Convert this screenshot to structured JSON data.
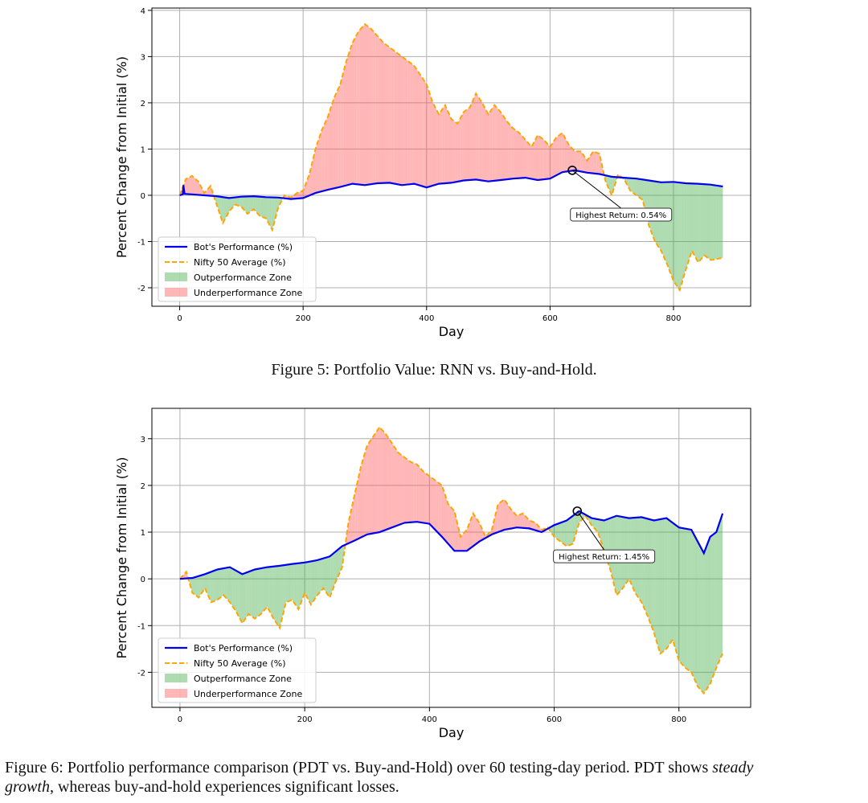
{
  "figures": [
    {
      "id": "fig5",
      "caption": "Figure 5: Portfolio Value: RNN vs. Buy-and-Hold.",
      "chart_data": {
        "type": "line",
        "title": "",
        "xlabel": "Day",
        "ylabel": "Percent Change from Initial (%)",
        "xlim": [
          -45,
          925
        ],
        "ylim": [
          -2.4,
          4.05
        ],
        "x_ticks": [
          0,
          200,
          400,
          600,
          800
        ],
        "y_ticks": [
          -2,
          -1,
          0,
          1,
          2,
          3,
          4
        ],
        "grid": true,
        "legend_position": "lower-left",
        "legend": [
          "Bot's Performance (%)",
          "Nifty 50 Average (%)",
          "Outperformance Zone",
          "Underperformance Zone"
        ],
        "series": [
          {
            "name": "Bot's Performance (%)",
            "style": "solid",
            "color": "#0000ee",
            "x": [
              0,
              5,
              6,
              8,
              20,
              40,
              60,
              80,
              100,
              120,
              140,
              160,
              180,
              200,
              220,
              240,
              260,
              280,
              300,
              320,
              340,
              360,
              380,
              400,
              420,
              440,
              460,
              480,
              500,
              520,
              540,
              560,
              580,
              600,
              620,
              640,
              660,
              680,
              700,
              720,
              740,
              760,
              780,
              800,
              820,
              840,
              860,
              880
            ],
            "y": [
              0.0,
              0.02,
              0.22,
              0.03,
              0.02,
              0.0,
              -0.02,
              -0.06,
              -0.03,
              -0.02,
              -0.04,
              -0.05,
              -0.08,
              -0.06,
              0.05,
              0.12,
              0.18,
              0.25,
              0.22,
              0.26,
              0.27,
              0.22,
              0.25,
              0.17,
              0.25,
              0.27,
              0.32,
              0.34,
              0.3,
              0.33,
              0.36,
              0.38,
              0.33,
              0.36,
              0.5,
              0.54,
              0.49,
              0.46,
              0.4,
              0.38,
              0.36,
              0.32,
              0.28,
              0.29,
              0.26,
              0.25,
              0.23,
              0.19
            ]
          },
          {
            "name": "Nifty 50 Average (%)",
            "style": "dashed",
            "color": "#ffa500",
            "x": [
              0,
              10,
              20,
              30,
              40,
              50,
              60,
              70,
              80,
              90,
              100,
              110,
              120,
              130,
              140,
              150,
              160,
              170,
              180,
              190,
              200,
              210,
              220,
              230,
              240,
              250,
              260,
              270,
              280,
              290,
              300,
              310,
              320,
              330,
              340,
              350,
              360,
              370,
              380,
              390,
              400,
              410,
              420,
              430,
              440,
              450,
              460,
              470,
              480,
              490,
              500,
              510,
              520,
              530,
              540,
              550,
              560,
              570,
              580,
              590,
              600,
              610,
              620,
              630,
              640,
              650,
              660,
              670,
              680,
              690,
              700,
              710,
              720,
              730,
              740,
              750,
              760,
              770,
              780,
              790,
              800,
              810,
              820,
              830,
              840,
              850,
              860,
              870,
              880
            ],
            "y": [
              0.0,
              0.35,
              0.42,
              0.3,
              0.05,
              0.2,
              -0.2,
              -0.6,
              -0.35,
              -0.2,
              -0.25,
              -0.4,
              -0.3,
              -0.45,
              -0.5,
              -0.75,
              -0.25,
              0.0,
              -0.05,
              0.05,
              0.1,
              0.45,
              1.0,
              1.4,
              1.7,
              2.1,
              2.4,
              2.9,
              3.3,
              3.55,
              3.7,
              3.6,
              3.45,
              3.3,
              3.2,
              3.1,
              3.0,
              2.9,
              2.8,
              2.6,
              2.4,
              2.0,
              1.75,
              1.95,
              1.65,
              1.55,
              1.8,
              1.9,
              2.2,
              2.0,
              1.75,
              1.95,
              1.8,
              1.6,
              1.45,
              1.35,
              1.2,
              1.05,
              1.3,
              1.2,
              1.05,
              1.25,
              1.35,
              1.1,
              0.95,
              0.95,
              0.75,
              0.95,
              0.9,
              0.3,
              0.0,
              0.45,
              0.35,
              0.1,
              0.0,
              -0.1,
              -0.65,
              -1.0,
              -1.2,
              -1.5,
              -1.85,
              -2.05,
              -1.6,
              -1.2,
              -1.45,
              -1.3,
              -1.4,
              -1.38,
              -1.35
            ]
          }
        ],
        "annotations": [
          {
            "text": "Highest Return: 0.54%",
            "x": 636,
            "y": 0.54,
            "label_x": 715,
            "label_y": -0.4
          }
        ]
      }
    },
    {
      "id": "fig6",
      "caption_prefix": "Figure 6: Portfolio performance comparison (PDT vs. Buy-and-Hold) over 60 testing-day period. PDT shows ",
      "caption_italic_1": "steady",
      "caption_italic_2": "growth",
      "caption_suffix": ", whereas buy-and-hold experiences significant losses.",
      "chart_data": {
        "type": "line",
        "title": "",
        "xlabel": "Day",
        "ylabel": "Percent Change from Initial (%)",
        "xlim": [
          -45,
          915
        ],
        "ylim": [
          -2.75,
          3.65
        ],
        "x_ticks": [
          0,
          200,
          400,
          600,
          800
        ],
        "y_ticks": [
          -2,
          -1,
          0,
          1,
          2,
          3
        ],
        "grid": true,
        "legend_position": "lower-left",
        "legend": [
          "Bot's Performance (%)",
          "Nifty 50 Average (%)",
          "Outperformance Zone",
          "Underperformance Zone"
        ],
        "series": [
          {
            "name": "Bot's Performance (%)",
            "style": "solid",
            "color": "#0000ee",
            "x": [
              0,
              20,
              40,
              60,
              80,
              100,
              120,
              140,
              160,
              180,
              200,
              220,
              240,
              260,
              280,
              300,
              320,
              340,
              360,
              380,
              400,
              420,
              440,
              460,
              480,
              500,
              520,
              540,
              560,
              580,
              600,
              620,
              640,
              660,
              680,
              700,
              720,
              740,
              760,
              780,
              800,
              820,
              840,
              850,
              860,
              870
            ],
            "y": [
              0.0,
              0.02,
              0.1,
              0.2,
              0.25,
              0.1,
              0.2,
              0.25,
              0.28,
              0.32,
              0.35,
              0.4,
              0.48,
              0.7,
              0.82,
              0.95,
              1.0,
              1.1,
              1.2,
              1.22,
              1.18,
              0.9,
              0.6,
              0.6,
              0.8,
              0.95,
              1.05,
              1.1,
              1.08,
              1.0,
              1.15,
              1.25,
              1.45,
              1.3,
              1.25,
              1.35,
              1.3,
              1.32,
              1.25,
              1.3,
              1.1,
              1.05,
              0.55,
              0.9,
              1.0,
              1.4
            ]
          },
          {
            "name": "Nifty 50 Average (%)",
            "style": "dashed",
            "color": "#ffa500",
            "x": [
              0,
              10,
              20,
              30,
              40,
              50,
              60,
              70,
              80,
              90,
              100,
              110,
              120,
              130,
              140,
              150,
              160,
              170,
              180,
              190,
              200,
              210,
              220,
              230,
              240,
              250,
              260,
              270,
              280,
              290,
              300,
              310,
              320,
              330,
              340,
              350,
              360,
              370,
              380,
              390,
              400,
              410,
              420,
              430,
              440,
              450,
              460,
              470,
              480,
              490,
              500,
              510,
              520,
              530,
              540,
              550,
              560,
              570,
              580,
              590,
              600,
              610,
              620,
              630,
              640,
              650,
              660,
              670,
              680,
              690,
              700,
              710,
              720,
              730,
              740,
              750,
              760,
              770,
              780,
              790,
              800,
              810,
              820,
              830,
              840,
              850,
              860,
              870
            ],
            "y": [
              0.0,
              0.15,
              -0.3,
              -0.4,
              -0.2,
              -0.5,
              -0.45,
              -0.35,
              -0.5,
              -0.7,
              -0.95,
              -0.75,
              -0.85,
              -0.75,
              -0.6,
              -0.85,
              -1.05,
              -0.5,
              -0.45,
              -0.65,
              -0.3,
              -0.55,
              -0.35,
              -0.2,
              -0.4,
              -0.05,
              0.25,
              1.2,
              1.8,
              2.4,
              2.85,
              3.05,
              3.25,
              3.1,
              2.9,
              2.7,
              2.6,
              2.5,
              2.45,
              2.3,
              2.2,
              2.1,
              2.0,
              1.6,
              1.45,
              0.9,
              1.05,
              1.4,
              1.2,
              0.9,
              1.05,
              1.6,
              1.7,
              1.5,
              1.35,
              1.4,
              1.25,
              1.2,
              1.05,
              1.1,
              0.9,
              0.8,
              0.7,
              0.75,
              1.2,
              1.35,
              1.15,
              1.0,
              0.6,
              0.2,
              -0.35,
              -0.2,
              0.0,
              -0.3,
              -0.5,
              -0.8,
              -1.15,
              -1.6,
              -1.5,
              -1.3,
              -1.75,
              -1.9,
              -2.0,
              -2.3,
              -2.45,
              -2.25,
              -1.9,
              -1.6
            ]
          }
        ],
        "annotations": [
          {
            "text": "Highest Return: 1.45%",
            "x": 637,
            "y": 1.45,
            "label_x": 680,
            "label_y": 0.5
          }
        ]
      }
    }
  ],
  "colors": {
    "bot": "#0000ee",
    "nifty": "#ffa500",
    "out_fill": "rgba(76,175,80,0.45)",
    "under_fill": "rgba(255,80,80,0.42)",
    "grid": "#b0b0b0"
  }
}
